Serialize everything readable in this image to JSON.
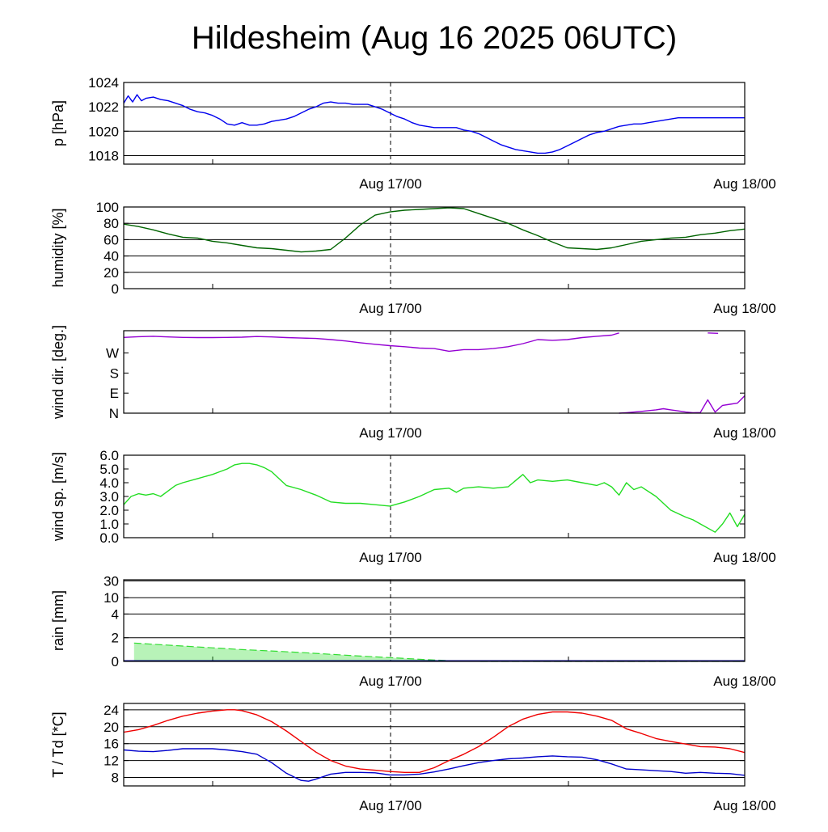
{
  "title": "Hildesheim (Aug 16 2025 06UTC)",
  "x_labels": [
    "Aug 17/00",
    "Aug 18/00"
  ],
  "colors": {
    "pressure": "#0000ee",
    "humidity": "#006400",
    "wind_dir": "#9400d3",
    "wind_speed": "#22dd22",
    "rain": "#33dd33",
    "temperature": "#ee0000",
    "dewpoint": "#0000cc"
  },
  "chart_data": [
    {
      "id": "pressure",
      "type": "line",
      "ylabel": "p [hPa]",
      "ylim": [
        1017.3,
        1024
      ],
      "yticks": [
        1018,
        1020,
        1022,
        1024
      ],
      "ytick_labels": [
        "1018",
        "1020",
        "1022",
        "1024"
      ],
      "grid": [
        1018,
        1020,
        1022,
        1024
      ],
      "xlim_hours": [
        0,
        42
      ],
      "series": [
        {
          "color_key": "pressure",
          "x": [
            0,
            0.3,
            0.6,
            0.9,
            1.2,
            1.5,
            2,
            2.5,
            3,
            3.5,
            4,
            4.5,
            5,
            5.5,
            6,
            6.5,
            7,
            7.5,
            8,
            8.5,
            9,
            9.5,
            10,
            10.5,
            11,
            11.5,
            12,
            12.5,
            13,
            13.5,
            14,
            14.5,
            15,
            15.5,
            16,
            16.5,
            17,
            17.5,
            18,
            18.5,
            19,
            19.5,
            20,
            20.5,
            21,
            21.5,
            22,
            22.5,
            23,
            23.5,
            24,
            24.5,
            25,
            25.5,
            26,
            26.5,
            27,
            27.5,
            28,
            28.5,
            29,
            29.5,
            30,
            30.5,
            31,
            31.5,
            32,
            32.5,
            33,
            33.5,
            34,
            34.5,
            35,
            35.5,
            36,
            36.5,
            37,
            37.5,
            38,
            38.5,
            39,
            39.5,
            40,
            40.5,
            41,
            41.5,
            42
          ],
          "y": [
            1022.3,
            1022.9,
            1022.4,
            1023.0,
            1022.5,
            1022.7,
            1022.8,
            1022.6,
            1022.5,
            1022.3,
            1022.1,
            1021.8,
            1021.6,
            1021.5,
            1021.3,
            1021.0,
            1020.6,
            1020.5,
            1020.7,
            1020.5,
            1020.5,
            1020.6,
            1020.8,
            1020.9,
            1021.0,
            1021.2,
            1021.5,
            1021.8,
            1022.0,
            1022.3,
            1022.4,
            1022.3,
            1022.3,
            1022.2,
            1022.2,
            1022.2,
            1022.0,
            1021.8,
            1021.5,
            1021.2,
            1021.0,
            1020.7,
            1020.5,
            1020.4,
            1020.3,
            1020.3,
            1020.3,
            1020.3,
            1020.1,
            1020.0,
            1019.8,
            1019.5,
            1019.2,
            1018.9,
            1018.7,
            1018.5,
            1018.4,
            1018.3,
            1018.2,
            1018.2,
            1018.3,
            1018.5,
            1018.8,
            1019.1,
            1019.4,
            1019.7,
            1019.9,
            1020.0,
            1020.2,
            1020.4,
            1020.5,
            1020.6,
            1020.6,
            1020.7,
            1020.8,
            1020.9,
            1021.0,
            1021.1,
            1021.1,
            1021.1,
            1021.1,
            1021.1,
            1021.1,
            1021.1,
            1021.1,
            1021.1,
            1021.1
          ]
        }
      ]
    },
    {
      "id": "humidity",
      "type": "line",
      "ylabel": "humidity [%]",
      "ylim": [
        0,
        100
      ],
      "yticks": [
        0,
        20,
        40,
        60,
        80,
        100
      ],
      "ytick_labels": [
        "0",
        "20",
        "40",
        "60",
        "80",
        "100"
      ],
      "grid": [
        20,
        40,
        60,
        80,
        100
      ],
      "xlim_hours": [
        0,
        42
      ],
      "series": [
        {
          "color_key": "humidity",
          "x": [
            0,
            1,
            2,
            3,
            4,
            5,
            6,
            7,
            8,
            9,
            10,
            11,
            12,
            13,
            14,
            15,
            16,
            17,
            18,
            19,
            20,
            21,
            22,
            23,
            24,
            25,
            26,
            27,
            28,
            29,
            30,
            31,
            32,
            33,
            34,
            35,
            36,
            37,
            38,
            39,
            40,
            41,
            42
          ],
          "y": [
            79,
            76,
            72,
            67,
            63,
            62,
            58,
            56,
            53,
            50,
            49,
            47,
            45,
            46,
            48,
            62,
            78,
            90,
            94,
            96,
            97,
            98,
            99,
            98,
            92,
            86,
            80,
            72,
            65,
            57,
            50,
            49,
            48,
            50,
            54,
            58,
            60,
            62,
            63,
            66,
            68,
            71,
            73
          ]
        }
      ]
    },
    {
      "id": "wind_dir",
      "type": "line",
      "ylabel": "wind dir. [deg.]",
      "ylim": [
        0,
        370
      ],
      "yticks": [
        0,
        90,
        180,
        270
      ],
      "ytick_labels": [
        "N",
        "E",
        "S",
        "W"
      ],
      "grid": [],
      "xlim_hours": [
        0,
        42
      ],
      "series": [
        {
          "color_key": "wind_dir",
          "x": [
            0,
            1,
            2,
            3,
            4,
            5,
            6,
            7,
            8,
            9,
            10,
            11,
            12,
            13,
            14,
            15,
            16,
            17,
            18,
            19,
            20,
            21,
            22,
            23,
            24,
            25,
            26,
            27,
            28,
            29,
            30,
            31,
            32,
            33,
            33.5
          ],
          "y": [
            340,
            343,
            345,
            342,
            340,
            339,
            339,
            340,
            341,
            344,
            342,
            339,
            337,
            335,
            330,
            324,
            316,
            309,
            303,
            298,
            292,
            290,
            278,
            285,
            285,
            290,
            298,
            312,
            330,
            327,
            330,
            339,
            345,
            350,
            360
          ]
        },
        {
          "color_key": "wind_dir",
          "x": [
            33.5,
            34,
            35,
            36,
            36.5,
            37,
            37.5,
            38,
            38.5,
            39,
            39.5,
            40,
            40.5,
            41,
            41.5,
            42
          ],
          "y": [
            0,
            2,
            8,
            15,
            20,
            15,
            10,
            5,
            2,
            3,
            60,
            5,
            35,
            40,
            45,
            78
          ]
        },
        {
          "color_key": "wind_dir",
          "x": [
            39.5,
            40.2
          ],
          "y": [
            360,
            358
          ]
        }
      ]
    },
    {
      "id": "wind_speed",
      "type": "line",
      "ylabel": "wind sp. [m/s]",
      "ylim": [
        0,
        6
      ],
      "yticks": [
        0,
        1,
        2,
        3,
        4,
        5,
        6
      ],
      "ytick_labels": [
        "0.0",
        "1.0",
        "2.0",
        "3.0",
        "4.0",
        "5.0",
        "6.0"
      ],
      "grid": [],
      "xlim_hours": [
        0,
        42
      ],
      "series": [
        {
          "color_key": "wind_speed",
          "x": [
            0,
            0.5,
            1,
            1.5,
            2,
            2.5,
            3,
            3.5,
            4,
            5,
            6,
            6.5,
            7,
            7.5,
            8,
            8.5,
            9,
            9.5,
            10,
            11,
            12,
            13,
            14,
            15,
            16,
            17,
            18,
            19,
            20,
            21,
            22,
            22.5,
            23,
            24,
            25,
            26,
            27,
            27.5,
            28,
            29,
            30,
            31,
            32,
            32.5,
            33,
            33.5,
            34,
            34.5,
            35,
            36,
            37,
            38,
            38.5,
            39,
            40,
            40.5,
            41,
            41.5,
            42
          ],
          "y": [
            2.4,
            3.0,
            3.2,
            3.1,
            3.2,
            3.0,
            3.4,
            3.8,
            4.0,
            4.3,
            4.6,
            4.8,
            5.0,
            5.3,
            5.4,
            5.4,
            5.3,
            5.1,
            4.8,
            3.8,
            3.5,
            3.1,
            2.6,
            2.5,
            2.5,
            2.4,
            2.3,
            2.6,
            3.0,
            3.5,
            3.6,
            3.3,
            3.6,
            3.7,
            3.6,
            3.7,
            4.6,
            4.0,
            4.2,
            4.1,
            4.2,
            4.0,
            3.8,
            4.0,
            3.7,
            3.1,
            4.0,
            3.5,
            3.7,
            3.0,
            2.0,
            1.5,
            1.3,
            1.0,
            0.4,
            1.0,
            1.8,
            0.8,
            1.7
          ]
        }
      ]
    },
    {
      "id": "rain",
      "type": "area",
      "ylabel": "rain [mm]",
      "ylim": [
        0,
        35
      ],
      "yticks": [
        0,
        2,
        4,
        10,
        30
      ],
      "ytick_labels": [
        "0",
        "2",
        "4",
        "10",
        "30"
      ],
      "grid": [
        2,
        4,
        10,
        30
      ],
      "scale": "nonlinear",
      "xlim_hours": [
        0,
        42
      ],
      "series": [
        {
          "color_key": "rain",
          "style": "dashed-top",
          "x": [
            0.7,
            2,
            4,
            6,
            8,
            10,
            12,
            14,
            16,
            18,
            20,
            22,
            24,
            26,
            42
          ],
          "y": [
            1.55,
            1.45,
            1.3,
            1.15,
            1.0,
            0.88,
            0.75,
            0.6,
            0.45,
            0.32,
            0.18,
            0.06,
            0.0,
            0.0,
            0.0
          ]
        }
      ]
    },
    {
      "id": "temperature",
      "type": "line",
      "ylabel": "T / Td [*C]",
      "ylim": [
        6,
        25.5
      ],
      "yticks": [
        8,
        12,
        16,
        20,
        24
      ],
      "ytick_labels": [
        "8",
        "12",
        "16",
        "20",
        "24"
      ],
      "grid": [
        8,
        12,
        16,
        20,
        24
      ],
      "xlim_hours": [
        0,
        42
      ],
      "series": [
        {
          "color_key": "temperature",
          "x": [
            0,
            1,
            2,
            3,
            4,
            5,
            6,
            7,
            7.5,
            8,
            9,
            10,
            11,
            12,
            13,
            14,
            15,
            16,
            17,
            18,
            19,
            20,
            21,
            22,
            23,
            24,
            25,
            26,
            27,
            28,
            29,
            30,
            31,
            32,
            33,
            34,
            35,
            36,
            37,
            38,
            39,
            40,
            41,
            42
          ],
          "y": [
            18.7,
            19.3,
            20.3,
            21.5,
            22.5,
            23.2,
            23.7,
            24.0,
            24.0,
            23.8,
            22.8,
            21.2,
            19.0,
            16.5,
            14.0,
            12.0,
            10.7,
            10.0,
            9.7,
            9.4,
            9.2,
            9.2,
            10.3,
            12.0,
            13.5,
            15.3,
            17.5,
            20.0,
            21.8,
            22.9,
            23.5,
            23.5,
            23.2,
            22.5,
            21.5,
            19.5,
            18.4,
            17.2,
            16.5,
            15.9,
            15.3,
            15.2,
            14.8,
            13.9
          ]
        },
        {
          "color_key": "dewpoint",
          "x": [
            0,
            1,
            2,
            3,
            4,
            5,
            6,
            7,
            8,
            9,
            10,
            11,
            12,
            12.5,
            13,
            14,
            15,
            16,
            17,
            18,
            19,
            20,
            21,
            22,
            23,
            24,
            25,
            26,
            27,
            28,
            29,
            30,
            31,
            32,
            33,
            34,
            35,
            36,
            37,
            38,
            39,
            40,
            41,
            42
          ],
          "y": [
            14.5,
            14.2,
            14.1,
            14.4,
            14.8,
            14.8,
            14.8,
            14.5,
            14.1,
            13.5,
            11.5,
            9.0,
            7.3,
            7.1,
            7.6,
            8.8,
            9.2,
            9.2,
            9.1,
            8.6,
            8.6,
            8.8,
            9.3,
            10.0,
            10.8,
            11.5,
            12.0,
            12.4,
            12.6,
            12.9,
            13.1,
            12.9,
            12.8,
            12.2,
            11.2,
            10.0,
            9.8,
            9.6,
            9.4,
            9.0,
            9.2,
            9.0,
            8.9,
            8.5
          ]
        }
      ]
    }
  ]
}
